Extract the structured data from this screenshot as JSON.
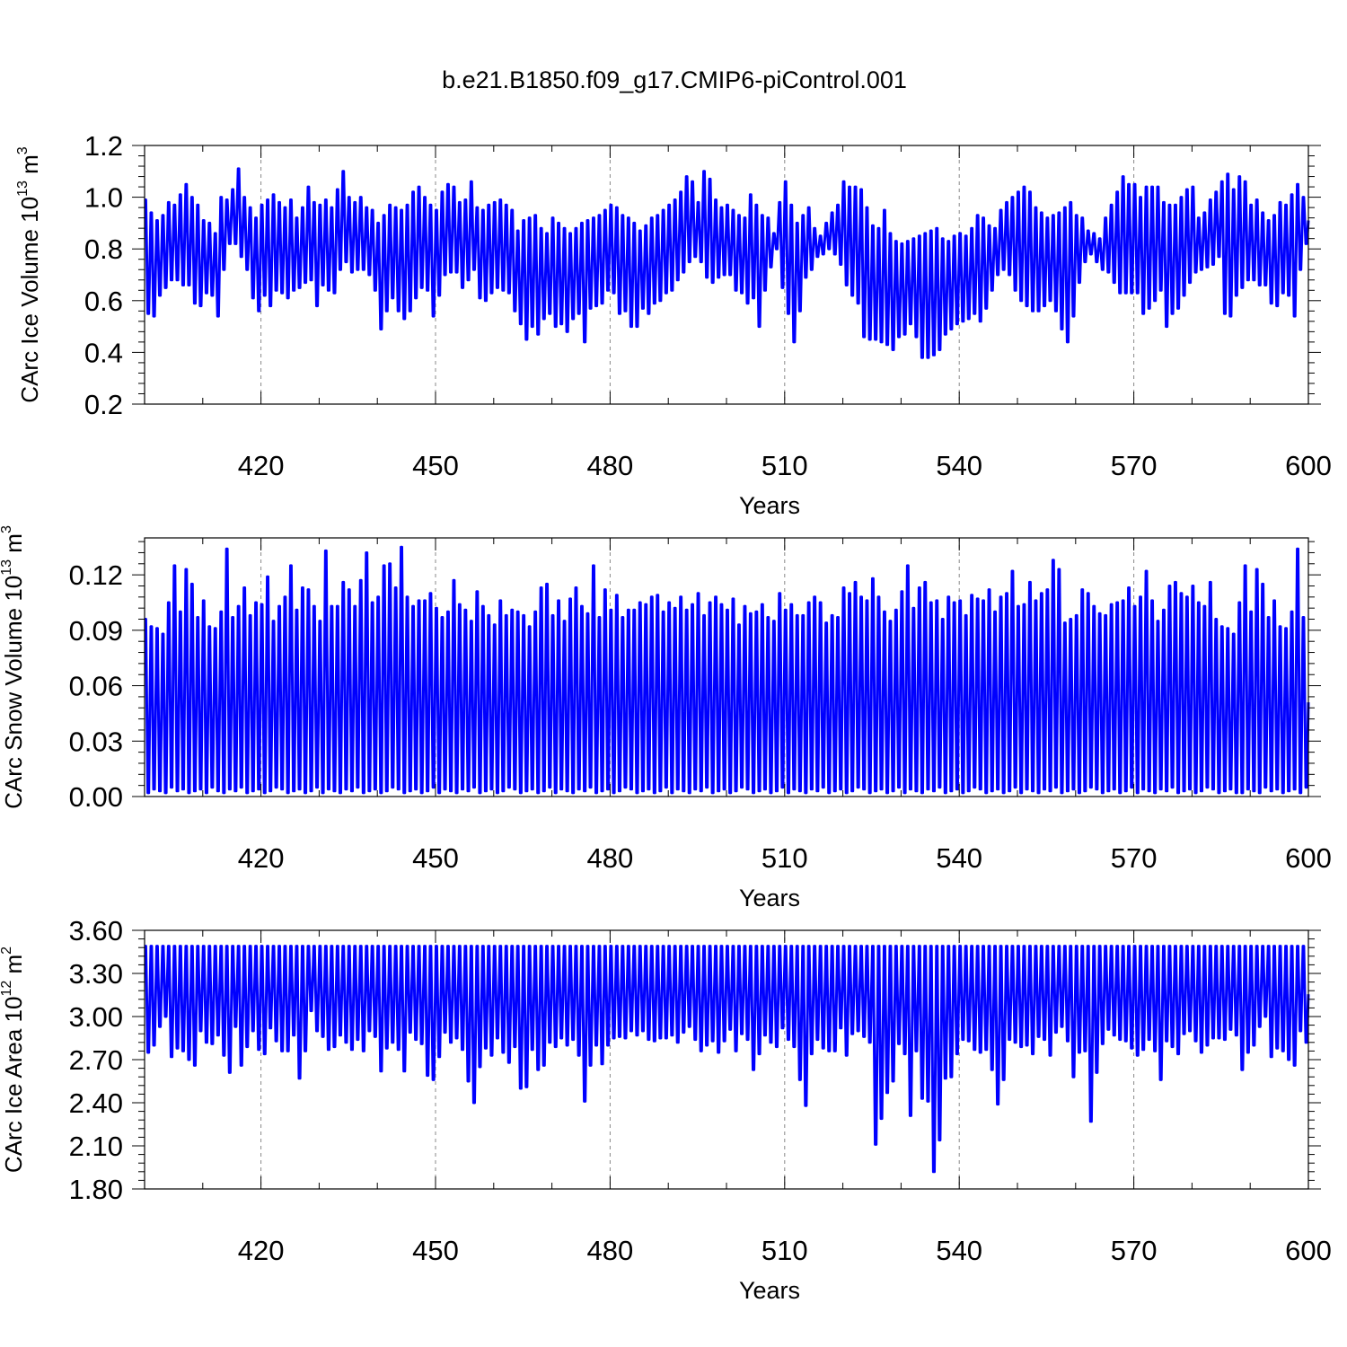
{
  "figure": {
    "title": "b.e21.B1850.f09_g17.CMIP6-piControl.001",
    "series_color": "#0000ff"
  },
  "chart_data": [
    {
      "type": "line",
      "ylabel": "CArc Ice Volume 10",
      "ylabel_exp": "13",
      "ylabel_unit": " m",
      "ylabel_unit_exp": "3",
      "xlabel": "Years",
      "xlim": [
        400,
        600
      ],
      "ylim": [
        0.2,
        1.2
      ],
      "xticks": [
        420,
        450,
        480,
        510,
        540,
        570,
        600
      ],
      "yticks": [
        "0.2",
        "0.4",
        "0.6",
        "0.8",
        "1.0",
        "1.2"
      ],
      "grid": "vertical dashed at major x ticks",
      "series": [
        {
          "seasonal": "annual max/min",
          "max": [
            0.99,
            0.94,
            0.91,
            0.93,
            0.98,
            0.97,
            1.01,
            1.05,
            1.0,
            0.97,
            0.91,
            0.9,
            0.86,
            1.0,
            0.99,
            1.03,
            1.11,
            1.0,
            0.96,
            0.92,
            0.97,
            0.99,
            1.01,
            0.98,
            0.96,
            0.99,
            0.92,
            0.96,
            1.04,
            0.98,
            0.97,
            0.99,
            0.96,
            1.03,
            1.1,
            1.0,
            0.98,
            1.0,
            0.96,
            0.95,
            0.9,
            0.93,
            0.97,
            0.96,
            0.95,
            0.97,
            1.02,
            1.04,
            1.0,
            0.97,
            0.95,
            1.02,
            1.05,
            1.04,
            0.98,
            0.99,
            1.06,
            0.96,
            0.95,
            0.97,
            0.98,
            0.99,
            0.97,
            0.95,
            0.87,
            0.91,
            0.92,
            0.93,
            0.88,
            0.86,
            0.92,
            0.9,
            0.88,
            0.86,
            0.88,
            0.9,
            0.91,
            0.92,
            0.93,
            0.95,
            0.97,
            0.96,
            0.93,
            0.92,
            0.9,
            0.87,
            0.89,
            0.92,
            0.93,
            0.95,
            0.97,
            0.99,
            1.02,
            1.08,
            1.06,
            0.98,
            1.1,
            1.07,
            0.99,
            0.96,
            0.97,
            0.95,
            0.93,
            0.92,
            1.01,
            0.97,
            0.93,
            0.92,
            0.86,
            0.98,
            1.06,
            0.97,
            0.9,
            0.93,
            0.96,
            0.88,
            0.85,
            0.9,
            0.94,
            0.97,
            1.06,
            1.04,
            1.04,
            1.03,
            0.96,
            0.89,
            0.88,
            0.95,
            0.86,
            0.83,
            0.82,
            0.83,
            0.84,
            0.85,
            0.86,
            0.87,
            0.88,
            0.84,
            0.83,
            0.85,
            0.86,
            0.85,
            0.88,
            0.93,
            0.92,
            0.89,
            0.88,
            0.95,
            0.98,
            1.0,
            1.02,
            1.04,
            1.02,
            0.96,
            0.94,
            0.92,
            0.93,
            0.94,
            0.96,
            0.98,
            0.93,
            0.92,
            0.87,
            0.86,
            0.84,
            0.92,
            0.97,
            1.02,
            1.08,
            1.05,
            1.05,
            1.0,
            1.04,
            1.04,
            1.04,
            0.98,
            0.97,
            0.97,
            1.0,
            1.03,
            1.04,
            0.92,
            0.94,
            0.99,
            1.02,
            1.06,
            1.09,
            1.03,
            1.08,
            1.06,
            0.97
          ],
          "min": [
            0.55,
            0.54,
            0.62,
            0.65,
            0.68,
            0.68,
            0.66,
            0.66,
            0.59,
            0.58,
            0.63,
            0.62,
            0.54,
            0.72,
            0.82,
            0.82,
            0.77,
            0.72,
            0.61,
            0.56,
            0.62,
            0.58,
            0.64,
            0.63,
            0.61,
            0.64,
            0.65,
            0.67,
            0.68,
            0.58,
            0.66,
            0.64,
            0.63,
            0.72,
            0.75,
            0.71,
            0.72,
            0.72,
            0.7,
            0.64,
            0.49,
            0.56,
            0.61,
            0.56,
            0.53,
            0.56,
            0.61,
            0.65,
            0.64,
            0.54,
            0.62,
            0.7,
            0.71,
            0.71,
            0.65,
            0.68,
            0.72,
            0.61,
            0.6,
            0.63,
            0.65,
            0.64,
            0.63,
            0.56,
            0.51,
            0.45,
            0.5,
            0.47,
            0.53,
            0.55,
            0.5,
            0.51,
            0.48,
            0.53,
            0.55,
            0.44,
            0.57,
            0.58,
            0.59,
            0.64,
            0.63,
            0.55,
            0.56,
            0.5,
            0.5,
            0.57,
            0.55,
            0.59,
            0.6,
            0.63,
            0.64,
            0.68,
            0.71,
            0.75,
            0.77,
            0.75,
            0.69,
            0.67,
            0.69,
            0.7,
            0.7,
            0.64,
            0.63,
            0.59,
            0.61,
            0.5,
            0.64,
            0.73,
            0.8,
            0.65,
            0.55,
            0.44,
            0.56,
            0.69,
            0.72,
            0.77,
            0.78,
            0.8,
            0.78,
            0.74,
            0.66,
            0.62,
            0.59,
            0.46,
            0.45,
            0.45,
            0.44,
            0.43,
            0.41,
            0.46,
            0.47,
            0.51,
            0.46,
            0.38,
            0.38,
            0.39,
            0.41,
            0.47,
            0.49,
            0.51,
            0.52,
            0.53,
            0.55,
            0.52,
            0.57,
            0.64,
            0.7,
            0.72,
            0.7,
            0.64,
            0.6,
            0.58,
            0.56,
            0.56,
            0.58,
            0.6,
            0.56,
            0.49,
            0.44,
            0.54,
            0.67,
            0.75,
            0.78,
            0.75,
            0.72,
            0.71,
            0.67,
            0.63,
            0.63,
            0.63,
            0.63,
            0.55,
            0.57,
            0.6,
            0.64,
            0.5,
            0.55,
            0.57,
            0.62,
            0.67,
            0.71,
            0.72,
            0.73,
            0.74,
            0.77
          ]
        }
      ]
    },
    {
      "type": "line",
      "ylabel": "CArc Snow Volume 10",
      "ylabel_exp": "13",
      "ylabel_unit": " m",
      "ylabel_unit_exp": "3",
      "xlabel": "Years",
      "xlim": [
        400,
        600
      ],
      "ylim": [
        0.0,
        0.14
      ],
      "xticks": [
        420,
        450,
        480,
        510,
        540,
        570,
        600
      ],
      "yticks": [
        "0.00",
        "0.03",
        "0.06",
        "0.09",
        "0.12"
      ],
      "grid": "vertical dashed at major x ticks",
      "series": [
        {
          "seasonal": "annual max/min",
          "max": [
            0.096,
            0.092,
            0.091,
            0.088,
            0.105,
            0.125,
            0.1,
            0.123,
            0.115,
            0.097,
            0.106,
            0.092,
            0.091,
            0.1,
            0.134,
            0.097,
            0.103,
            0.113,
            0.098,
            0.105,
            0.104,
            0.119,
            0.095,
            0.103,
            0.108,
            0.125,
            0.101,
            0.113,
            0.112,
            0.103,
            0.095,
            0.133,
            0.103,
            0.103,
            0.116,
            0.112,
            0.103,
            0.117,
            0.132,
            0.105,
            0.108,
            0.125,
            0.126,
            0.113,
            0.135,
            0.108,
            0.103,
            0.106,
            0.106,
            0.11,
            0.102,
            0.097,
            0.1,
            0.117,
            0.104,
            0.101,
            0.095,
            0.111,
            0.103,
            0.098,
            0.093,
            0.106,
            0.098,
            0.101,
            0.1,
            0.098,
            0.092,
            0.1,
            0.113,
            0.115,
            0.098,
            0.106,
            0.095,
            0.107,
            0.113,
            0.103,
            0.099,
            0.125,
            0.097,
            0.112,
            0.101,
            0.109,
            0.097,
            0.101,
            0.101,
            0.105,
            0.104,
            0.108,
            0.109,
            0.1,
            0.105,
            0.102,
            0.108,
            0.101,
            0.104,
            0.11,
            0.098,
            0.105,
            0.108,
            0.104,
            0.101,
            0.107,
            0.093,
            0.103,
            0.099,
            0.1,
            0.104,
            0.097,
            0.095,
            0.11,
            0.101,
            0.104,
            0.098,
            0.098,
            0.105,
            0.108,
            0.105,
            0.094,
            0.098,
            0.097,
            0.113,
            0.11,
            0.116,
            0.108,
            0.106,
            0.118,
            0.108,
            0.1,
            0.095,
            0.101,
            0.111,
            0.125,
            0.102,
            0.113,
            0.116,
            0.105,
            0.106,
            0.096,
            0.108,
            0.105,
            0.106,
            0.098,
            0.109,
            0.107,
            0.106,
            0.112,
            0.1,
            0.108,
            0.11,
            0.122,
            0.103,
            0.104,
            0.116,
            0.106,
            0.11,
            0.112,
            0.128,
            0.123,
            0.094,
            0.096,
            0.098,
            0.112,
            0.11,
            0.103,
            0.099,
            0.098,
            0.104,
            0.105,
            0.106,
            0.113,
            0.103,
            0.108,
            0.122,
            0.106,
            0.095,
            0.101,
            0.114,
            0.116,
            0.11,
            0.108,
            0.114,
            0.105,
            0.103,
            0.116
          ],
          "min": [
            0.002,
            0.004,
            0.003,
            0.002,
            0.005,
            0.003,
            0.004,
            0.002,
            0.003,
            0.004,
            0.002,
            0.005,
            0.003,
            0.002,
            0.004,
            0.003,
            0.005,
            0.002,
            0.003,
            0.004,
            0.002,
            0.003,
            0.005,
            0.004,
            0.002,
            0.003,
            0.004,
            0.002,
            0.003,
            0.005,
            0.002,
            0.004,
            0.003,
            0.002,
            0.004,
            0.003,
            0.005,
            0.002,
            0.003,
            0.004,
            0.002,
            0.003,
            0.005,
            0.004,
            0.002,
            0.003,
            0.004,
            0.002,
            0.003,
            0.005,
            0.002,
            0.004,
            0.003,
            0.002,
            0.004,
            0.003,
            0.005,
            0.002,
            0.003,
            0.004,
            0.002,
            0.003,
            0.005,
            0.004,
            0.002,
            0.003,
            0.004,
            0.002,
            0.003,
            0.005,
            0.002,
            0.004,
            0.003,
            0.002,
            0.004,
            0.003,
            0.005,
            0.002,
            0.003,
            0.004,
            0.002,
            0.003,
            0.005,
            0.004,
            0.002,
            0.003,
            0.004,
            0.002,
            0.003,
            0.005,
            0.002,
            0.004,
            0.003,
            0.002,
            0.004,
            0.003,
            0.005,
            0.002,
            0.003,
            0.004,
            0.002,
            0.003,
            0.005,
            0.004,
            0.002,
            0.003,
            0.004,
            0.002,
            0.003,
            0.005,
            0.002,
            0.004,
            0.003,
            0.002,
            0.004,
            0.003,
            0.005,
            0.002,
            0.003,
            0.004,
            0.002,
            0.003,
            0.005,
            0.004,
            0.002,
            0.003,
            0.004,
            0.002,
            0.003,
            0.005,
            0.002,
            0.004,
            0.003,
            0.002,
            0.004,
            0.003,
            0.005,
            0.002,
            0.003,
            0.004,
            0.002,
            0.003,
            0.005,
            0.004,
            0.002,
            0.003,
            0.004,
            0.002,
            0.003,
            0.005,
            0.002,
            0.004,
            0.003,
            0.002,
            0.004,
            0.003,
            0.005,
            0.002,
            0.003,
            0.004,
            0.002,
            0.003,
            0.005,
            0.004,
            0.002,
            0.003,
            0.004,
            0.002,
            0.003,
            0.005,
            0.002,
            0.004,
            0.003,
            0.002,
            0.004,
            0.003,
            0.005,
            0.002,
            0.003,
            0.004,
            0.002,
            0.003,
            0.005,
            0.004,
            0.002,
            0.003,
            0.004,
            0.002
          ]
        }
      ]
    },
    {
      "type": "line",
      "ylabel": "CArc Ice Area 10",
      "ylabel_exp": "12",
      "ylabel_unit": " m",
      "ylabel_unit_exp": "2",
      "xlabel": "Years",
      "xlim": [
        400,
        600
      ],
      "ylim": [
        1.8,
        3.6
      ],
      "xticks": [
        420,
        450,
        480,
        510,
        540,
        570,
        600
      ],
      "yticks": [
        "1.80",
        "2.10",
        "2.40",
        "2.70",
        "3.00",
        "3.30",
        "3.60"
      ],
      "grid": "vertical dashed at major x ticks",
      "series": [
        {
          "seasonal": "annual max/min",
          "max": [
            3.49
          ],
          "min": [
            2.75,
            2.8,
            2.93,
            3.0,
            2.72,
            2.78,
            2.76,
            2.7,
            2.66,
            2.9,
            2.82,
            2.81,
            2.87,
            2.73,
            2.61,
            2.93,
            2.66,
            2.79,
            2.9,
            2.77,
            2.74,
            2.92,
            2.83,
            2.76,
            2.76,
            2.87,
            2.57,
            2.76,
            3.04,
            2.9,
            2.86,
            2.77,
            2.79,
            2.87,
            2.82,
            2.77,
            2.84,
            2.76,
            2.9,
            2.86,
            2.62,
            2.78,
            2.82,
            2.77,
            2.62,
            2.89,
            2.84,
            2.81,
            2.59,
            2.56,
            2.72,
            2.89,
            2.82,
            2.85,
            2.77,
            2.55,
            2.4,
            2.65,
            2.78,
            2.73,
            2.85,
            2.75,
            2.68,
            2.79,
            2.5,
            2.51,
            2.77,
            2.63,
            2.66,
            2.82,
            2.79,
            2.85,
            2.8,
            2.84,
            2.73,
            2.41,
            2.66,
            2.8,
            2.67,
            2.8,
            2.85,
            2.86,
            2.85,
            2.9,
            2.87,
            2.9,
            2.84,
            2.83,
            2.85,
            2.85,
            2.87,
            2.82,
            2.89,
            2.93,
            2.84,
            2.76,
            2.8,
            2.83,
            2.75,
            2.83,
            2.91,
            2.76,
            2.88,
            2.84,
            2.63,
            2.74,
            2.87,
            2.82,
            2.79,
            2.92,
            2.84,
            2.79,
            2.56,
            2.38,
            2.74,
            2.84,
            2.78,
            2.76,
            2.76,
            2.92,
            2.73,
            2.88,
            2.9,
            2.86,
            2.82,
            2.11,
            2.29,
            2.47,
            2.55,
            2.81,
            2.74,
            2.31,
            2.76,
            2.43,
            2.41,
            1.92,
            2.14,
            2.57,
            2.58,
            2.74,
            2.84,
            2.83,
            2.77,
            2.75,
            2.77,
            2.63,
            2.39,
            2.56,
            2.84,
            2.82,
            2.79,
            2.8,
            2.74,
            2.86,
            2.84,
            2.73,
            2.89,
            2.93,
            2.83,
            2.58,
            2.75,
            2.76,
            2.27,
            2.61,
            2.81,
            2.91,
            2.87,
            2.84,
            2.83,
            2.78,
            2.73,
            2.77,
            2.84,
            2.76,
            2.56,
            2.83,
            2.79,
            2.74,
            2.88,
            2.9,
            2.83,
            2.75,
            2.8,
            2.85,
            2.85,
            2.84,
            2.91,
            2.87,
            2.63
          ]
        }
      ]
    }
  ]
}
